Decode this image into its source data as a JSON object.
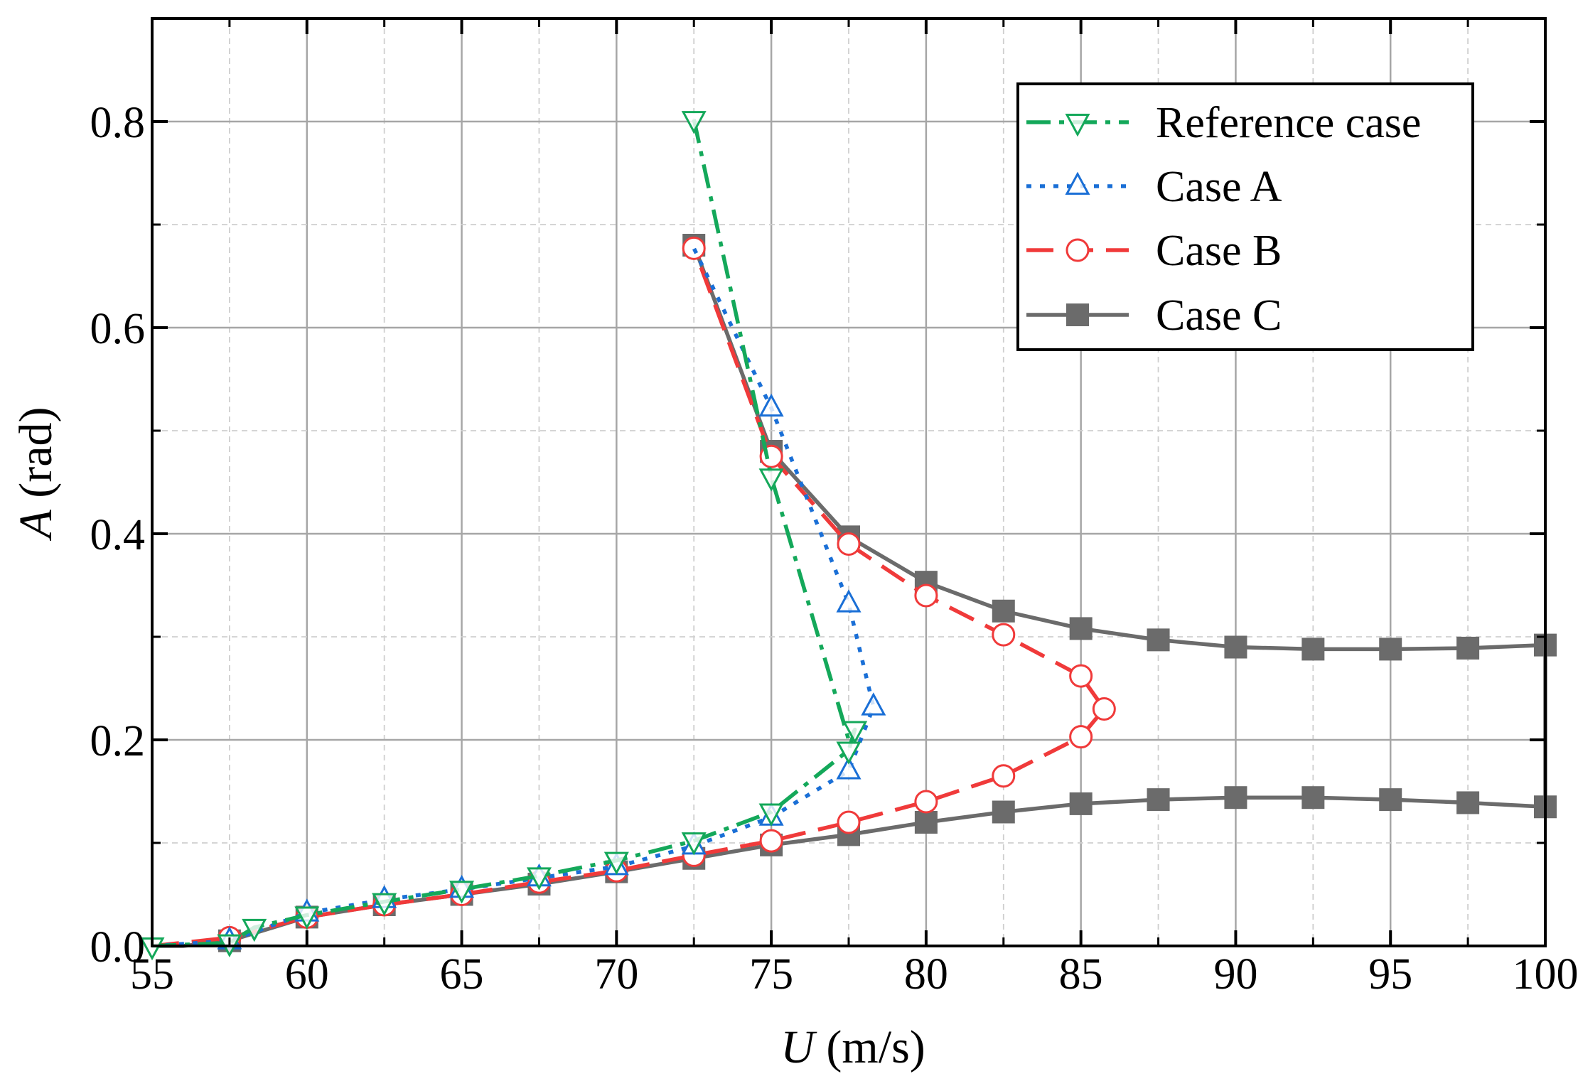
{
  "chart_data": {
    "type": "line",
    "title": "",
    "xlabel": {
      "italic": "U",
      "unit": " (m/s)"
    },
    "ylabel": {
      "italic": "A",
      "unit": " (rad)"
    },
    "xlim": [
      55,
      100
    ],
    "ylim": [
      0,
      0.9
    ],
    "xticks": [
      55,
      60,
      65,
      70,
      75,
      80,
      85,
      90,
      95,
      100
    ],
    "xtick_labels": [
      "55",
      "60",
      "65",
      "70",
      "75",
      "80",
      "85",
      "90",
      "95",
      "100"
    ],
    "yticks": [
      0.0,
      0.2,
      0.4,
      0.6,
      0.8
    ],
    "ytick_labels": [
      "0.0",
      "0.2",
      "0.4",
      "0.6",
      "0.8"
    ],
    "grid": true,
    "legend_position": "top-right",
    "series": [
      {
        "name": "Case C",
        "color": "#6b6b6b",
        "dash": "solid",
        "marker": "square",
        "x": [
          55,
          56,
          57.5,
          60,
          62.5,
          65,
          67.5,
          70,
          72.5,
          75,
          77.5,
          80,
          82.5,
          85,
          87.5,
          90,
          92.5,
          95,
          97.5,
          100,
          100,
          97.5,
          95,
          92.5,
          90,
          87.5,
          85,
          82.5,
          80,
          77.5,
          75,
          72.5
        ],
        "y": [
          0.0,
          0.0,
          0.005,
          0.028,
          0.04,
          0.05,
          0.06,
          0.072,
          0.085,
          0.098,
          0.108,
          0.12,
          0.13,
          0.138,
          0.142,
          0.144,
          0.144,
          0.142,
          0.139,
          0.135,
          0.292,
          0.289,
          0.288,
          0.288,
          0.29,
          0.297,
          0.308,
          0.325,
          0.353,
          0.397,
          0.48,
          0.68
        ],
        "marker_x": [
          57.5,
          60,
          62.5,
          65,
          67.5,
          70,
          72.5,
          75,
          77.5,
          80,
          82.5,
          85,
          87.5,
          90,
          92.5,
          95,
          97.5,
          100,
          100,
          97.5,
          95,
          92.5,
          90,
          87.5,
          85,
          82.5,
          80,
          77.5,
          75,
          72.5
        ],
        "marker_y": [
          0.005,
          0.028,
          0.04,
          0.05,
          0.06,
          0.072,
          0.085,
          0.098,
          0.108,
          0.12,
          0.13,
          0.138,
          0.142,
          0.144,
          0.144,
          0.142,
          0.139,
          0.135,
          0.292,
          0.289,
          0.288,
          0.288,
          0.29,
          0.297,
          0.308,
          0.325,
          0.353,
          0.397,
          0.48,
          0.68
        ]
      },
      {
        "name": "Case B",
        "color": "#f03a3a",
        "dash": "dashed",
        "marker": "circle",
        "x": [
          55,
          57.5,
          60,
          62.5,
          65,
          67.5,
          70,
          72.5,
          75,
          77.5,
          80,
          82.5,
          85,
          85.75,
          85,
          82.5,
          80,
          77.5,
          75,
          72.5
        ],
        "y": [
          0.0,
          0.008,
          0.028,
          0.04,
          0.05,
          0.062,
          0.073,
          0.088,
          0.102,
          0.12,
          0.14,
          0.165,
          0.203,
          0.23,
          0.262,
          0.302,
          0.34,
          0.39,
          0.475,
          0.677
        ],
        "marker_x": [
          57.5,
          60,
          62.5,
          65,
          67.5,
          70,
          72.5,
          75,
          77.5,
          80,
          82.5,
          85,
          85.75,
          85,
          82.5,
          80,
          77.5,
          75,
          72.5
        ],
        "marker_y": [
          0.008,
          0.028,
          0.04,
          0.05,
          0.062,
          0.073,
          0.088,
          0.102,
          0.12,
          0.14,
          0.165,
          0.203,
          0.23,
          0.262,
          0.302,
          0.34,
          0.39,
          0.475,
          0.677
        ]
      },
      {
        "name": "Case A",
        "color": "#1a6fd6",
        "dash": "dotted",
        "marker": "triangle-up",
        "x": [
          55,
          57.5,
          60,
          62.5,
          65,
          67.5,
          70,
          72.5,
          75,
          77.5,
          78.3,
          77.5,
          75,
          72.5
        ],
        "y": [
          0.0,
          0.005,
          0.032,
          0.045,
          0.055,
          0.066,
          0.077,
          0.097,
          0.125,
          0.17,
          0.232,
          0.332,
          0.522,
          0.677
        ],
        "marker_x": [
          57.5,
          60,
          62.5,
          65,
          67.5,
          70,
          72.5,
          75,
          77.5,
          78.3,
          77.5,
          75
        ],
        "marker_y": [
          0.005,
          0.032,
          0.045,
          0.055,
          0.066,
          0.077,
          0.097,
          0.125,
          0.17,
          0.232,
          0.332,
          0.522
        ]
      },
      {
        "name": "Reference case",
        "color": "#14a85a",
        "dash": "dashdot",
        "marker": "triangle-down",
        "x": [
          55,
          57.5,
          58.3,
          60,
          62.5,
          65,
          67.5,
          70,
          72.5,
          75,
          77.5,
          77.7,
          77.5,
          75,
          72.5
        ],
        "y": [
          0.0,
          0.003,
          0.018,
          0.03,
          0.043,
          0.055,
          0.068,
          0.083,
          0.102,
          0.13,
          0.19,
          0.21,
          0.2,
          0.455,
          0.802
        ],
        "marker_x": [
          55,
          57.5,
          58.3,
          60,
          62.5,
          65,
          67.5,
          70,
          72.5,
          75,
          77.5,
          77.7,
          75,
          72.5
        ],
        "marker_y": [
          0.0,
          0.003,
          0.018,
          0.03,
          0.043,
          0.055,
          0.068,
          0.083,
          0.102,
          0.13,
          0.19,
          0.21,
          0.455,
          0.802
        ]
      }
    ],
    "legend_order": [
      "Reference case",
      "Case A",
      "Case B",
      "Case C"
    ]
  }
}
